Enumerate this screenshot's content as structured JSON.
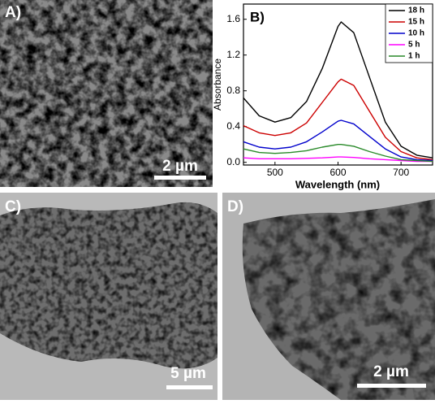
{
  "panels": {
    "a": {
      "label": "A)",
      "scale_bar": "2 µm"
    },
    "c": {
      "label": "C)",
      "scale_bar": "5 µm"
    },
    "d": {
      "label": "D)",
      "scale_bar": "2 µm"
    }
  },
  "chart_data": {
    "type": "line",
    "title": "B)",
    "x_label": "Wavelength (nm)",
    "y_label": "Absorbance",
    "x": [
      450,
      475,
      500,
      525,
      550,
      575,
      600,
      605,
      625,
      650,
      675,
      700,
      725,
      750
    ],
    "series": [
      {
        "name": "18 h",
        "color": "#000000",
        "values": [
          0.72,
          0.52,
          0.45,
          0.5,
          0.68,
          1.05,
          1.52,
          1.57,
          1.45,
          0.95,
          0.45,
          0.18,
          0.08,
          0.05
        ]
      },
      {
        "name": "15 h",
        "color": "#cc0000",
        "values": [
          0.41,
          0.33,
          0.3,
          0.33,
          0.44,
          0.67,
          0.9,
          0.93,
          0.86,
          0.57,
          0.28,
          0.12,
          0.05,
          0.03
        ]
      },
      {
        "name": "10 h",
        "color": "#0000cc",
        "values": [
          0.23,
          0.17,
          0.15,
          0.17,
          0.23,
          0.34,
          0.46,
          0.47,
          0.43,
          0.29,
          0.15,
          0.06,
          0.03,
          0.02
        ]
      },
      {
        "name": "5 h",
        "color": "#ff00ff",
        "values": [
          0.05,
          0.04,
          0.04,
          0.04,
          0.045,
          0.05,
          0.06,
          0.06,
          0.055,
          0.04,
          0.03,
          0.02,
          0.01,
          0.01
        ]
      },
      {
        "name": "1 h",
        "color": "#2a8a2a",
        "values": [
          0.15,
          0.11,
          0.1,
          0.11,
          0.13,
          0.17,
          0.2,
          0.2,
          0.18,
          0.12,
          0.07,
          0.03,
          0.02,
          0.01
        ]
      }
    ],
    "xlim": [
      450,
      750
    ],
    "ylim": [
      -0.03,
      1.77
    ],
    "xticks": [
      500,
      600,
      700
    ],
    "yticks": [
      {
        "value": 0,
        "label": "0.0"
      },
      0.4,
      0.8,
      1.2,
      1.6
    ],
    "legend": "upper right"
  }
}
